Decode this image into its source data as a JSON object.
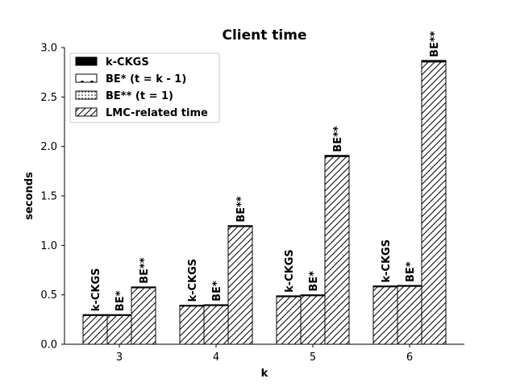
{
  "chart_data": {
    "type": "bar",
    "title": "Client time",
    "xlabel": "k",
    "ylabel": "seconds",
    "categories": [
      "3",
      "4",
      "5",
      "6"
    ],
    "ylim": [
      0,
      3.0
    ],
    "yticks": [
      "0.0",
      "0.5",
      "1.0",
      "1.5",
      "2.0",
      "2.5",
      "3.0"
    ],
    "grid": false,
    "legend_position": "top-left",
    "legend": [
      {
        "label": "k-CKGS",
        "pattern": "solid"
      },
      {
        "label": "BE* (t = k - 1)",
        "pattern": "dots"
      },
      {
        "label": "BE** (t = 1)",
        "pattern": "dotted-small"
      },
      {
        "label": "LMC-related time",
        "pattern": "hatch"
      }
    ],
    "groups": [
      {
        "name": "k-CKGS",
        "bar_label": "k-CKGS",
        "solid_part": [
          0.003,
          0.003,
          0.003,
          0.003
        ],
        "lmc_part": [
          0.297,
          0.392,
          0.487,
          0.587
        ],
        "totals": [
          0.3,
          0.395,
          0.49,
          0.59
        ]
      },
      {
        "name": "BE* (t = k - 1)",
        "bar_label": "BE*",
        "solid_part": [
          0.004,
          0.004,
          0.005,
          0.005
        ],
        "lmc_part": [
          0.296,
          0.396,
          0.495,
          0.59
        ],
        "totals": [
          0.3,
          0.4,
          0.5,
          0.595
        ]
      },
      {
        "name": "BE** (t = 1)",
        "bar_label": "BE**",
        "solid_part": [
          0.008,
          0.01,
          0.012,
          0.015
        ],
        "lmc_part": [
          0.572,
          1.19,
          1.898,
          2.855
        ],
        "totals": [
          0.58,
          1.2,
          1.91,
          2.87
        ]
      }
    ]
  }
}
